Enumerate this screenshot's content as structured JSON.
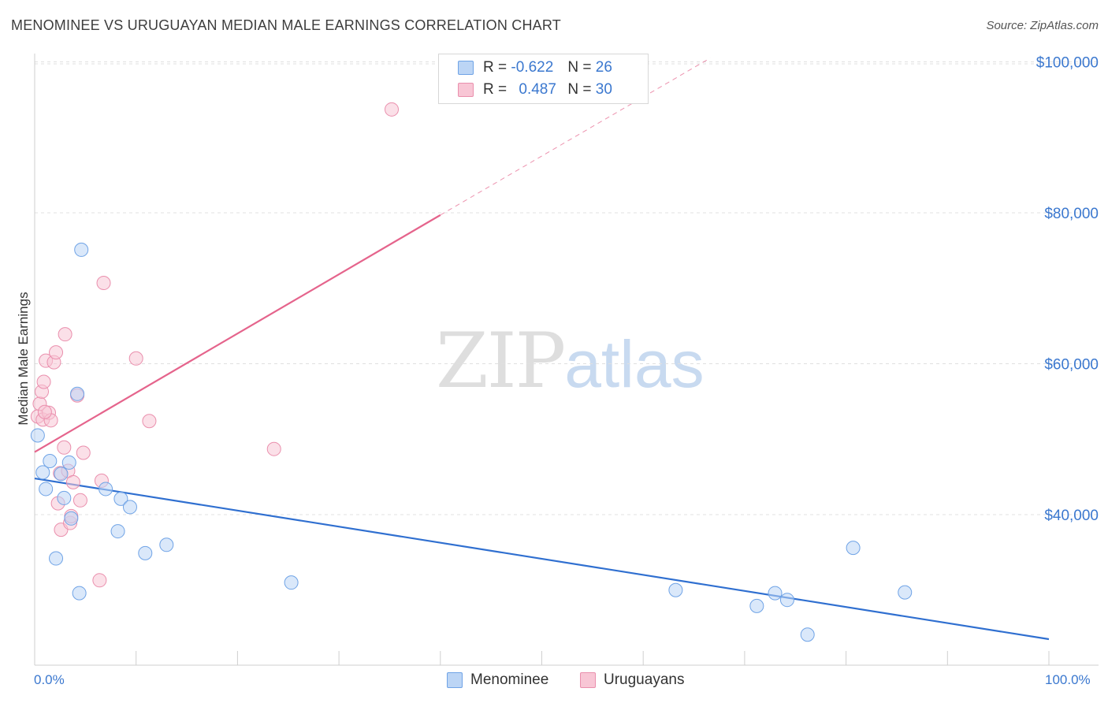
{
  "header": {
    "title": "MENOMINEE VS URUGUAYAN MEDIAN MALE EARNINGS CORRELATION CHART",
    "source": "Source: ZipAtlas.com"
  },
  "watermark": {
    "zip": "ZIP",
    "atlas": "atlas"
  },
  "legend": {
    "rows": [
      {
        "r_label": "R =",
        "r_value": "-0.622",
        "n_label": "N =",
        "n_value": "26"
      },
      {
        "r_label": "R =",
        "r_value": "0.487",
        "n_label": "N =",
        "n_value": "30"
      }
    ]
  },
  "colors": {
    "menominee": "#6fa3e6",
    "menominee_fill": "#bcd5f5",
    "menominee_line": "#2f6fd0",
    "uruguayans": "#ea8fad",
    "uruguayans_fill": "#f8c6d5",
    "uruguayans_line": "#e5648c",
    "grid": "#e0e0e0",
    "axis_text": "#3b78cf"
  },
  "chart_data": {
    "type": "scatter",
    "title": "MENOMINEE VS URUGUAYAN MEDIAN MALE EARNINGS CORRELATION CHART",
    "xlabel": "",
    "ylabel": "Median Male Earnings",
    "xlim": [
      0,
      100
    ],
    "ylim": [
      21000,
      102000
    ],
    "x_tick_labels": [
      "0.0%",
      "100.0%"
    ],
    "y_ticks": [
      40000,
      60000,
      80000,
      100000
    ],
    "y_tick_labels": [
      "$40,000",
      "$60,000",
      "$80,000",
      "$100,000"
    ],
    "grid": true,
    "series": [
      {
        "name": "Menominee",
        "r": -0.622,
        "n": 26,
        "trend": {
          "x": [
            0,
            100
          ],
          "y": [
            44800,
            23500
          ]
        },
        "points": [
          {
            "x": 0.3,
            "y": 50500
          },
          {
            "x": 0.8,
            "y": 45600
          },
          {
            "x": 1.1,
            "y": 43400
          },
          {
            "x": 1.5,
            "y": 47100
          },
          {
            "x": 2.1,
            "y": 34200
          },
          {
            "x": 2.6,
            "y": 45400
          },
          {
            "x": 2.9,
            "y": 42200
          },
          {
            "x": 3.4,
            "y": 46900
          },
          {
            "x": 3.6,
            "y": 39500
          },
          {
            "x": 4.2,
            "y": 56000
          },
          {
            "x": 4.4,
            "y": 29600
          },
          {
            "x": 4.6,
            "y": 75100
          },
          {
            "x": 7.0,
            "y": 43400
          },
          {
            "x": 8.2,
            "y": 37800
          },
          {
            "x": 8.5,
            "y": 42100
          },
          {
            "x": 9.4,
            "y": 41000
          },
          {
            "x": 10.9,
            "y": 34900
          },
          {
            "x": 13.0,
            "y": 36000
          },
          {
            "x": 25.3,
            "y": 31000
          },
          {
            "x": 63.2,
            "y": 30000
          },
          {
            "x": 71.2,
            "y": 27900
          },
          {
            "x": 73.0,
            "y": 29600
          },
          {
            "x": 74.2,
            "y": 28700
          },
          {
            "x": 76.2,
            "y": 24100
          },
          {
            "x": 80.7,
            "y": 35600
          },
          {
            "x": 85.8,
            "y": 29700
          }
        ]
      },
      {
        "name": "Uruguayans",
        "r": 0.487,
        "n": 30,
        "trend": {
          "x": [
            0,
            40
          ],
          "y": [
            48300,
            79700
          ],
          "x_dashed": [
            40,
            66.6
          ],
          "y_dashed": [
            79700,
            100500
          ]
        },
        "points": [
          {
            "x": 0.3,
            "y": 53000
          },
          {
            "x": 0.5,
            "y": 54700
          },
          {
            "x": 0.7,
            "y": 56300
          },
          {
            "x": 0.8,
            "y": 52600
          },
          {
            "x": 0.9,
            "y": 57600
          },
          {
            "x": 1.1,
            "y": 60400
          },
          {
            "x": 1.4,
            "y": 53500
          },
          {
            "x": 1.6,
            "y": 52500
          },
          {
            "x": 1.9,
            "y": 60200
          },
          {
            "x": 2.1,
            "y": 61500
          },
          {
            "x": 2.3,
            "y": 41500
          },
          {
            "x": 2.5,
            "y": 45500
          },
          {
            "x": 2.6,
            "y": 38000
          },
          {
            "x": 2.9,
            "y": 48900
          },
          {
            "x": 3.0,
            "y": 63900
          },
          {
            "x": 3.3,
            "y": 45800
          },
          {
            "x": 3.5,
            "y": 38900
          },
          {
            "x": 3.6,
            "y": 39800
          },
          {
            "x": 3.8,
            "y": 44300
          },
          {
            "x": 4.2,
            "y": 55800
          },
          {
            "x": 4.5,
            "y": 41900
          },
          {
            "x": 4.8,
            "y": 48200
          },
          {
            "x": 6.4,
            "y": 31300
          },
          {
            "x": 6.6,
            "y": 44500
          },
          {
            "x": 6.8,
            "y": 70700
          },
          {
            "x": 10.0,
            "y": 60700
          },
          {
            "x": 11.3,
            "y": 52400
          },
          {
            "x": 23.6,
            "y": 48700
          },
          {
            "x": 35.2,
            "y": 93700
          },
          {
            "x": 1.0,
            "y": 53600
          }
        ]
      }
    ]
  },
  "bottom_legend": {
    "items": [
      {
        "label": "Menominee"
      },
      {
        "label": "Uruguayans"
      }
    ]
  }
}
